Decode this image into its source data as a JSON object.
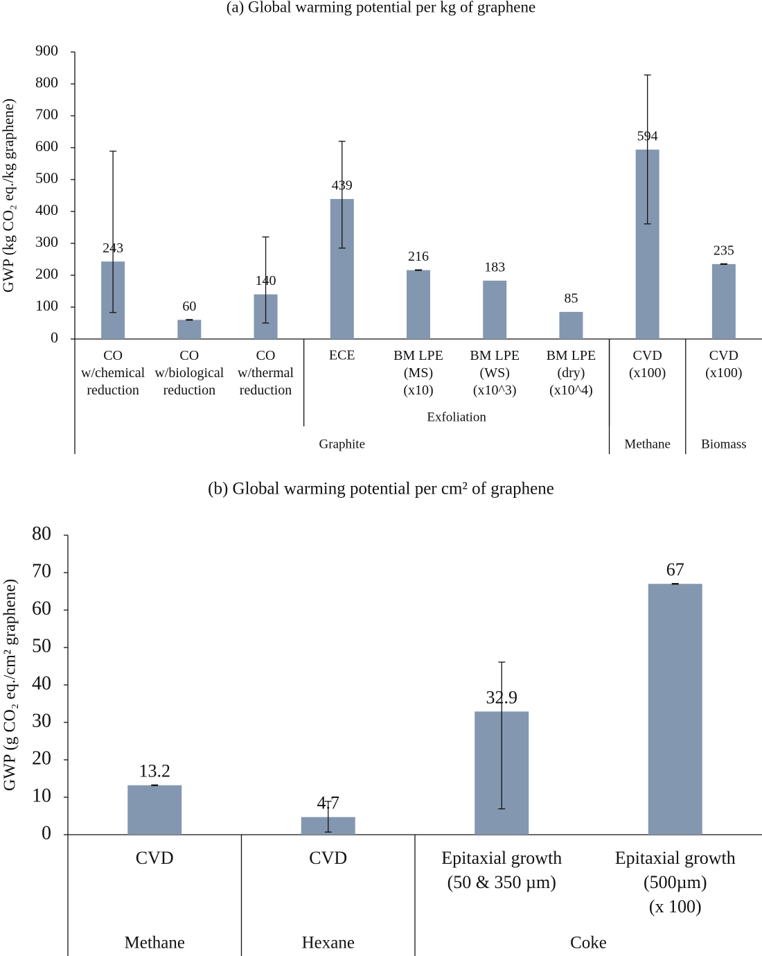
{
  "chart_data": [
    {
      "type": "bar",
      "title": "(a) Global warming potential per kg of graphene",
      "y_label": "GWP (kg CO₂ eq./kg graphene)",
      "categories": [
        "CO\nw/chemical\nreduction",
        "CO\nw/biological\nreduction",
        "CO\nw/thermal\nreduction",
        "ECE",
        "BM LPE\n(MS)\n(x10)",
        "BM LPE\n(WS)\n(x10^3)",
        "BM LPE\n(dry)\n(x10^4)",
        "CVD\n(x100)",
        "CVD\n(x100)"
      ],
      "groups": [
        [
          null,
          null,
          null,
          "Exfoliation",
          "Exfoliation",
          "Exfoliation",
          "Exfoliation",
          null,
          null
        ],
        [
          "Graphite",
          "Graphite",
          "Graphite",
          "Graphite",
          "Graphite",
          "Graphite",
          "Graphite",
          "Methane",
          "Biomass"
        ]
      ],
      "values": [
        243,
        60,
        140,
        439,
        216,
        183,
        85,
        594,
        235
      ],
      "error_low": [
        83,
        59,
        50,
        285,
        215,
        null,
        null,
        361,
        234
      ],
      "error_high": [
        589,
        61,
        320,
        620,
        217,
        null,
        null,
        828,
        236
      ],
      "color": "#8497b0",
      "ylim": [
        0,
        900
      ],
      "yticks": [
        0,
        100,
        200,
        300,
        400,
        500,
        600,
        700,
        800,
        900
      ]
    },
    {
      "type": "bar",
      "title": "(b) Global warming potential per cm² of graphene",
      "y_label": "GWP (g CO₂ eq./cm² graphene)",
      "categories": [
        "CVD",
        "CVD",
        "Epitaxial  growth\n(50 & 350 µm)",
        "Epitaxial  growth\n(500µm)\n(x 100)"
      ],
      "groups": [
        [
          "Methane",
          "Hexane",
          "Coke",
          "Coke"
        ]
      ],
      "values": [
        13.2,
        4.7,
        32.9,
        67
      ],
      "error_low": [
        13.1,
        0.7,
        6.9,
        66.9
      ],
      "error_high": [
        13.3,
        8.9,
        46.1,
        67.1
      ],
      "color": "#8497b0",
      "ylim": [
        0,
        80
      ],
      "yticks": [
        0,
        10,
        20,
        30,
        40,
        50,
        60,
        70,
        80
      ]
    }
  ]
}
